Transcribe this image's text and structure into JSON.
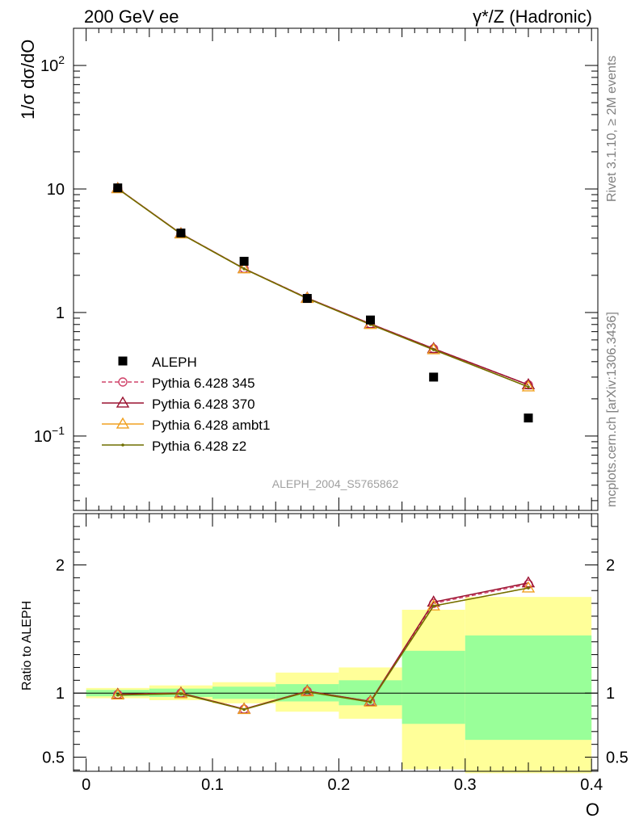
{
  "header": {
    "left": "200 GeV ee",
    "right": "γ*/Z (Hadronic)"
  },
  "side_labels": {
    "rivet": "Rivet 3.1.10, ≥ 2M events",
    "mcplots": "mcplots.cern.ch [arXiv:1306.3436]"
  },
  "analysis_id": "ALEPH_2004_S5765862",
  "chart_data": [
    {
      "type": "scatter",
      "panel": "main",
      "ylabel": "1/σ dσ/dO",
      "yscale": "log",
      "ylim": [
        0.025,
        200
      ],
      "xlim": [
        -0.01,
        0.405
      ],
      "ytick_labels": [
        "10^-1",
        "1",
        "10",
        "10^2"
      ],
      "x": [
        0.025,
        0.075,
        0.125,
        0.175,
        0.225,
        0.275,
        0.35
      ],
      "series": [
        {
          "name": "ALEPH",
          "color": "#000000",
          "marker": "square",
          "line": "none",
          "values": [
            10.2,
            4.4,
            2.6,
            1.3,
            0.87,
            0.3,
            0.14
          ]
        },
        {
          "name": "Pythia 6.428 345",
          "color": "#d0436a",
          "marker": "circle",
          "line": "dashed",
          "values": [
            10.1,
            4.35,
            2.27,
            1.31,
            0.81,
            0.51,
            0.26
          ]
        },
        {
          "name": "Pythia 6.428 370",
          "color": "#9a1230",
          "marker": "triangle",
          "line": "solid",
          "values": [
            10.1,
            4.35,
            2.27,
            1.31,
            0.81,
            0.51,
            0.26
          ]
        },
        {
          "name": "Pythia 6.428 ambt1",
          "color": "#f0a020",
          "marker": "triangle",
          "line": "solid",
          "values": [
            10.05,
            4.33,
            2.26,
            1.3,
            0.8,
            0.5,
            0.25
          ]
        },
        {
          "name": "Pythia 6.428 z2",
          "color": "#6e6e00",
          "marker": "dot",
          "line": "solid",
          "values": [
            10.05,
            4.33,
            2.26,
            1.3,
            0.8,
            0.5,
            0.25
          ]
        }
      ]
    },
    {
      "type": "line",
      "panel": "ratio",
      "ylabel": "Ratio to ALEPH",
      "xlabel": "O",
      "ylim": [
        0.39,
        2.4
      ],
      "xlim": [
        -0.01,
        0.405
      ],
      "xtick_labels": [
        "0",
        "0.1",
        "0.2",
        "0.3",
        "0.4"
      ],
      "ytick_labels": [
        "0.5",
        "1",
        "2"
      ],
      "bins": [
        [
          0.0,
          0.05
        ],
        [
          0.05,
          0.1
        ],
        [
          0.1,
          0.15
        ],
        [
          0.15,
          0.2
        ],
        [
          0.2,
          0.25
        ],
        [
          0.25,
          0.3
        ],
        [
          0.3,
          0.4
        ]
      ],
      "band_green": [
        [
          0.975,
          1.025
        ],
        [
          0.97,
          1.035
        ],
        [
          0.955,
          1.05
        ],
        [
          0.935,
          1.07
        ],
        [
          0.905,
          1.1
        ],
        [
          0.76,
          1.33
        ],
        [
          0.635,
          1.45
        ]
      ],
      "band_yellow": [
        [
          0.96,
          1.04
        ],
        [
          0.945,
          1.06
        ],
        [
          0.92,
          1.085
        ],
        [
          0.855,
          1.16
        ],
        [
          0.8,
          1.2
        ],
        [
          0.405,
          1.65
        ],
        [
          0.375,
          1.75
        ]
      ],
      "x": [
        0.025,
        0.075,
        0.125,
        0.175,
        0.225,
        0.275,
        0.35
      ],
      "series": [
        {
          "name": "Pythia 6.428 345",
          "color": "#d0436a",
          "values": [
            0.99,
            1.0,
            0.875,
            1.015,
            0.935,
            1.7,
            1.85
          ]
        },
        {
          "name": "Pythia 6.428 370",
          "color": "#9a1230",
          "values": [
            0.99,
            1.0,
            0.875,
            1.015,
            0.935,
            1.71,
            1.86
          ]
        },
        {
          "name": "Pythia 6.428 ambt1",
          "color": "#f0a020",
          "values": [
            0.985,
            0.995,
            0.872,
            1.01,
            0.93,
            1.68,
            1.82
          ]
        },
        {
          "name": "Pythia 6.428 z2",
          "color": "#6e6e00",
          "values": [
            0.985,
            0.995,
            0.872,
            1.01,
            0.93,
            1.68,
            1.82
          ]
        }
      ]
    }
  ]
}
